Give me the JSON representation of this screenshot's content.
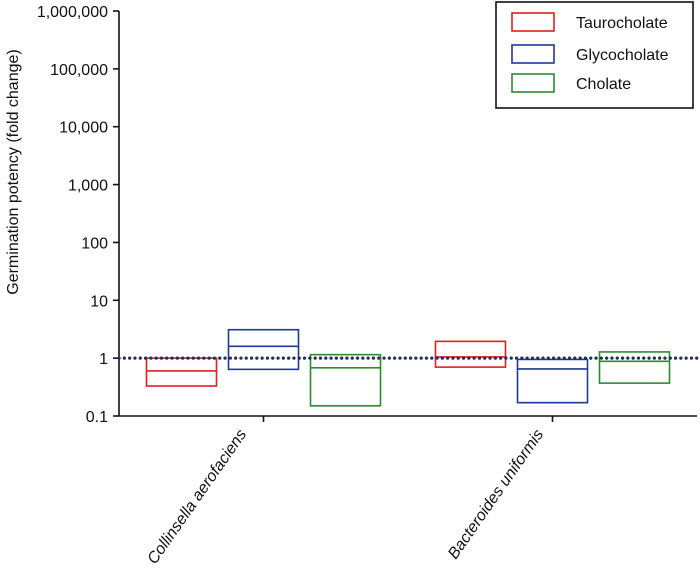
{
  "chart_data": {
    "type": "box",
    "ylabel": "Germination potency (fold change)",
    "y_scale": "log",
    "ylim": [
      0.1,
      1000000
    ],
    "y_ticks": [
      0.1,
      1,
      10,
      100,
      1000,
      10000,
      100000,
      1000000
    ],
    "y_tick_labels": [
      "0.1",
      "1",
      "10",
      "100",
      "1,000",
      "10,000",
      "100,000",
      "1,000,000"
    ],
    "reference_line": 1,
    "categories": [
      "Collinsella aerofaciens",
      "Bacteroides uniformis"
    ],
    "series": [
      {
        "name": "Taurocholate",
        "color": "#e02020",
        "boxes": [
          {
            "low": 0.33,
            "median": 0.6,
            "high": 1.0
          },
          {
            "low": 0.7,
            "median": 1.05,
            "high": 1.95
          }
        ]
      },
      {
        "name": "Glycocholate",
        "color": "#1f3a93",
        "boxes": [
          {
            "low": 0.64,
            "median": 1.6,
            "high": 3.1
          },
          {
            "low": 0.17,
            "median": 0.65,
            "high": 0.95
          }
        ]
      },
      {
        "name": "Cholate",
        "color": "#2e8b2e",
        "boxes": [
          {
            "low": 0.15,
            "median": 0.68,
            "high": 1.15
          },
          {
            "low": 0.37,
            "median": 0.88,
            "high": 1.28
          }
        ]
      }
    ],
    "legend_position": "top-right",
    "grid": false
  }
}
